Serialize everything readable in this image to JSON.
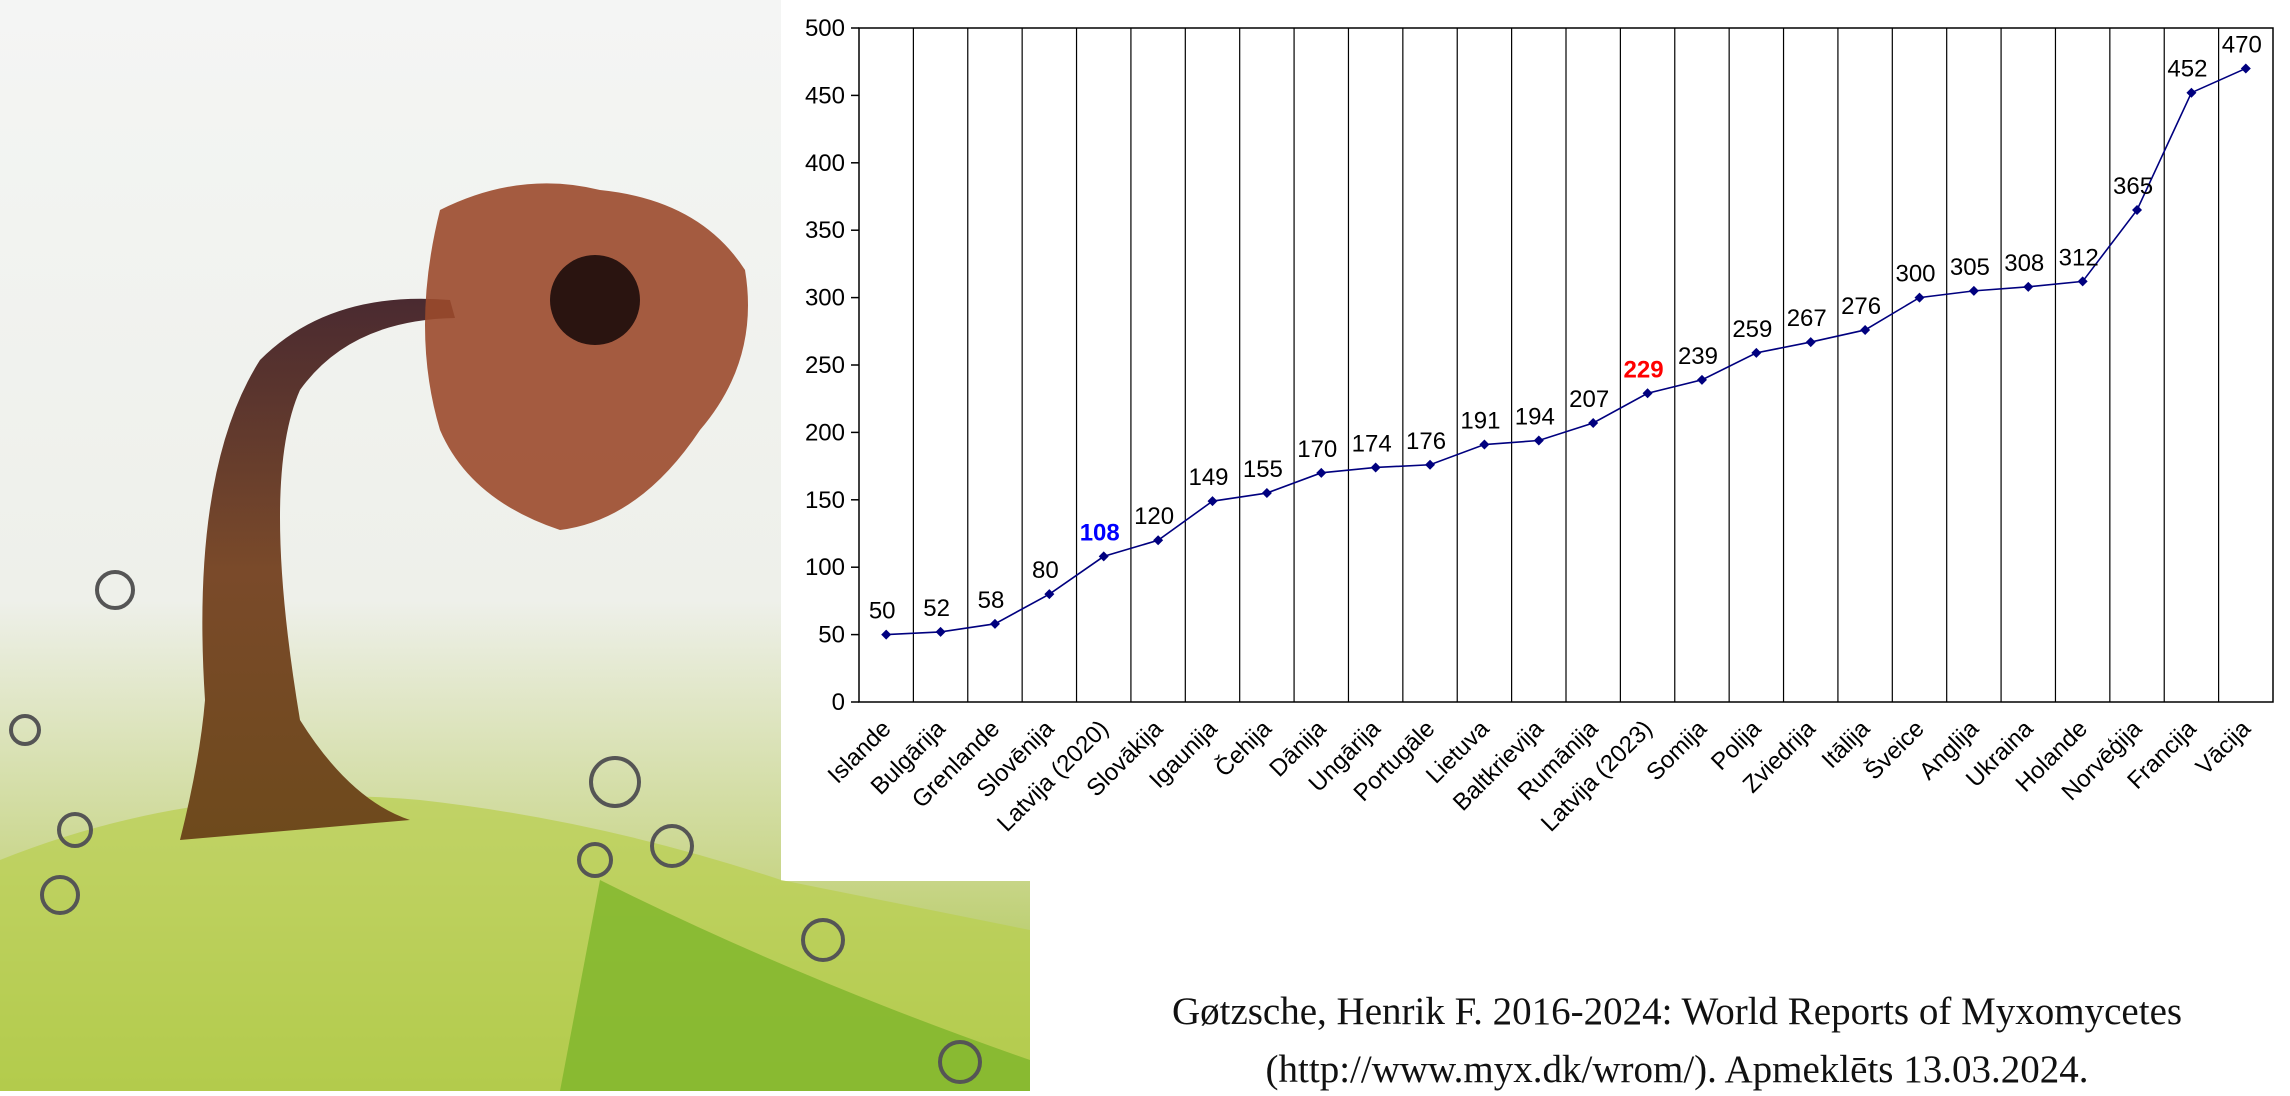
{
  "chart_data": {
    "type": "line",
    "categories": [
      "Islande",
      "Bulgārija",
      "Grenlande",
      "Slovēnija",
      "Latvija (2020)",
      "Slovākija",
      "Igaunija",
      "Čehija",
      "Dānija",
      "Ungārija",
      "Portugāle",
      "Lietuva",
      "Baltkrievija",
      "Rumānija",
      "Latvija (2023)",
      "Somija",
      "Polija",
      "Zviedrija",
      "Itālija",
      "Šveice",
      "Anglija",
      "Ukraina",
      "Holande",
      "Norvēģija",
      "Francija",
      "Vācija"
    ],
    "values": [
      50,
      52,
      58,
      80,
      108,
      120,
      149,
      155,
      170,
      174,
      176,
      191,
      194,
      207,
      229,
      239,
      259,
      267,
      276,
      300,
      305,
      308,
      312,
      365,
      452,
      470
    ],
    "color": "#00007f",
    "label_color": "#000000",
    "highlights": [
      {
        "index": 4,
        "color": "#0000ff"
      },
      {
        "index": 14,
        "color": "#ff0000"
      }
    ],
    "ylim": [
      0,
      500
    ],
    "yticks": [
      0,
      50,
      100,
      150,
      200,
      250,
      300,
      350,
      400,
      450,
      500
    ],
    "grid": true
  },
  "caption": {
    "line1": "Gøtzsche, Henrik F. 2016-2024: World Reports of Myxomycetes",
    "line2": "(http://www.myx.dk/wrom/). Apmeklēts 13.03.2024."
  }
}
